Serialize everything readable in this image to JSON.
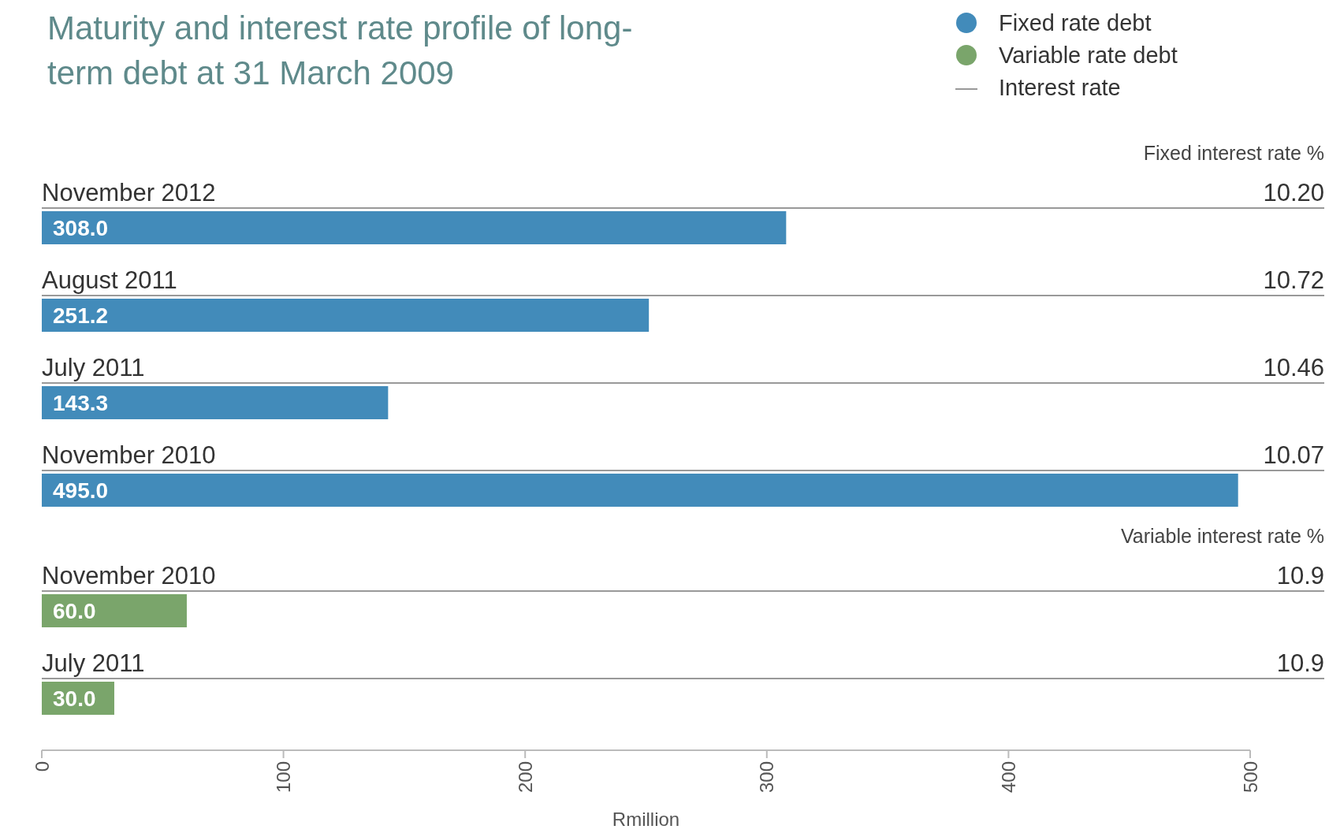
{
  "chart_data": [
    {
      "type": "bar",
      "orientation": "horizontal",
      "title": "Maturity and interest rate profile of long-term debt at 31 March 2009",
      "categories": [
        "November 2012",
        "August 2011",
        "July 2011",
        "November 2010"
      ],
      "series": [
        {
          "name": "Fixed rate debt",
          "color": "#428bba",
          "values": [
            308.0,
            251.2,
            143.3,
            495.0
          ],
          "value_labels": [
            "308.0",
            "251.2",
            "143.3",
            "495.0"
          ]
        }
      ],
      "xlim": [
        0,
        500
      ],
      "tick_labels": false,
      "legend": "top right",
      "ref_lines": [
        {
          "axis": "y",
          "value": "November 2012",
          "label": "10.20",
          "color": "#999999"
        },
        {
          "axis": "y",
          "value": "August 2011",
          "label": "10.72",
          "color": "#999999"
        },
        {
          "axis": "y",
          "value": "July 2011",
          "label": "10.46",
          "color": "#999999"
        },
        {
          "axis": "y",
          "value": "November 2010",
          "label": "10.07",
          "color": "#999999"
        }
      ],
      "annotations": [
        "Fixed interest rate %",
        "Interest rate"
      ]
    },
    {
      "type": "bar",
      "orientation": "horizontal",
      "xlabel": "Rmillion",
      "categories": [
        "November 2010",
        "July 2011"
      ],
      "series": [
        {
          "name": "Variable rate debt",
          "color": "#7aa56b",
          "values": [
            60.0,
            30.0
          ],
          "value_labels": [
            "60.0",
            "30.0"
          ]
        }
      ],
      "xlim": [
        0,
        500
      ],
      "xticks": [
        0,
        100,
        200,
        300,
        400,
        500
      ],
      "legend": "top right",
      "ref_lines": [
        {
          "axis": "y",
          "value": "November 2010",
          "label": "10.9",
          "color": "#999999"
        },
        {
          "axis": "y",
          "value": "July 2011",
          "label": "10.9",
          "color": "#999999"
        }
      ],
      "annotations": [
        "Variable interest rate %"
      ]
    }
  ]
}
